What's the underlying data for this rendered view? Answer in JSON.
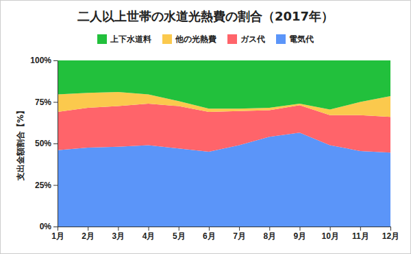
{
  "chart_data": {
    "type": "area",
    "stacked": true,
    "title": "二人以上世帯の水道光熱費の割合（2017年）",
    "y_label": "支出金額割合【%】",
    "categories": [
      "1月",
      "2月",
      "3月",
      "4月",
      "5月",
      "6月",
      "7月",
      "8月",
      "9月",
      "10月",
      "11月",
      "12月"
    ],
    "series": [
      {
        "name": "上下水道料",
        "color": "#22c03c",
        "values": [
          20.5,
          19.5,
          19,
          20.5,
          24.5,
          29,
          29,
          28.5,
          26,
          29.5,
          25,
          21.5
        ]
      },
      {
        "name": "他の光熱費",
        "color": "#fbc94d",
        "values": [
          10.5,
          9,
          8.5,
          5.5,
          3,
          2,
          1.5,
          1.5,
          1,
          3.5,
          8,
          12.5
        ]
      },
      {
        "name": "ガス代",
        "color": "#ff646a",
        "values": [
          23,
          24,
          24.5,
          25,
          25.5,
          24,
          20.5,
          16,
          16.5,
          18,
          21.5,
          21.5
        ]
      },
      {
        "name": "電気代",
        "color": "#5b95f9",
        "values": [
          46,
          47.5,
          48,
          49,
          47,
          45,
          49,
          54,
          56.5,
          49,
          45.5,
          44.5
        ]
      }
    ],
    "ylim": [
      0,
      100
    ],
    "yticks": [
      {
        "value": 0,
        "label": "0%"
      },
      {
        "value": 25,
        "label": "25%"
      },
      {
        "value": 50,
        "label": "50%"
      },
      {
        "value": 75,
        "label": "75%"
      },
      {
        "value": 100,
        "label": "100%"
      }
    ],
    "legend": "top",
    "grid": false
  }
}
